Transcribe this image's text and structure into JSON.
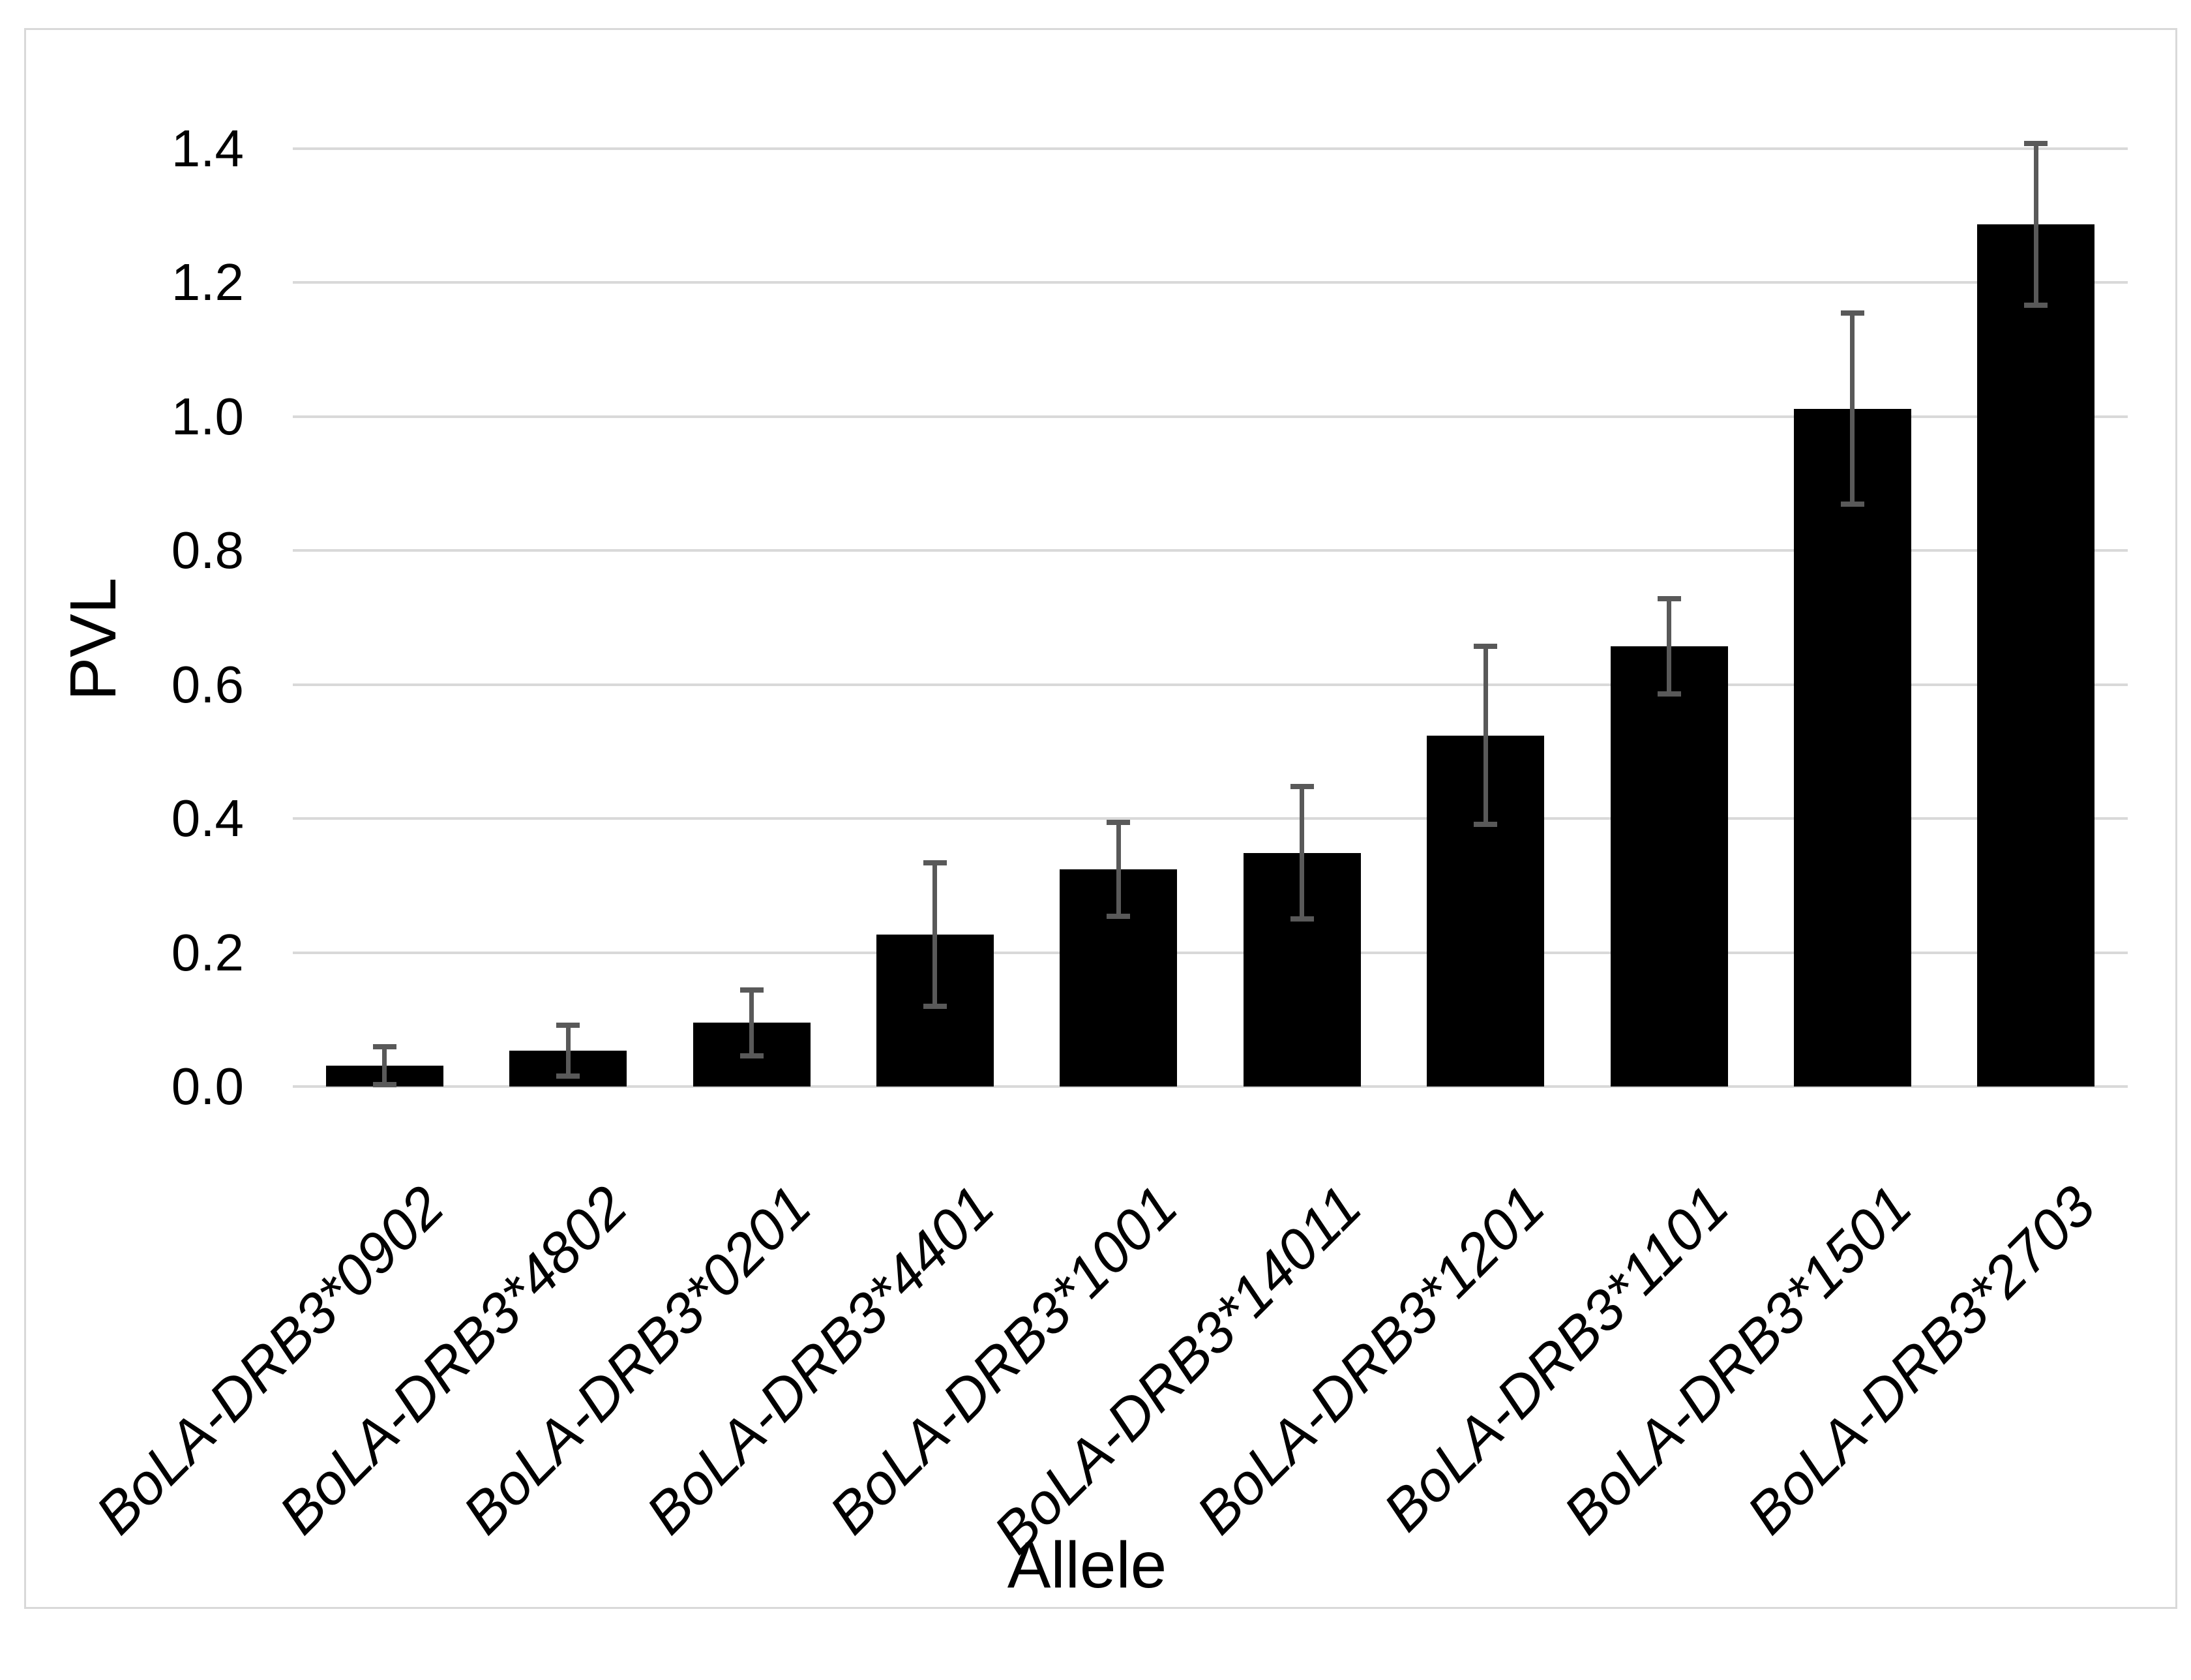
{
  "page": {
    "background": "#ffffff"
  },
  "chart_data": {
    "type": "bar",
    "title": "",
    "xlabel": "Allele",
    "ylabel": "PVL",
    "categories": [
      "BoLA-DRB3*0902",
      "BoLA-DRB3*4802",
      "BoLA-DRB3*0201",
      "BoLA-DRB3*4401",
      "BoLA-DRB3*1001",
      "BoLA-DRB3*14011",
      "BoLA-DRB3*1201",
      "BoLA-DRB3*1101",
      "BoLA-DRB3*1501",
      "BoLA-DRB3*2703"
    ],
    "values": [
      0.031,
      0.054,
      0.095,
      0.227,
      0.324,
      0.349,
      0.524,
      0.657,
      1.012,
      1.287
    ],
    "error_bars": [
      0.028,
      0.038,
      0.049,
      0.107,
      0.07,
      0.099,
      0.133,
      0.071,
      0.143,
      0.121
    ],
    "ylim": [
      0,
      1.4
    ],
    "ytick_step": 0.2,
    "ytick_labels": [
      "0.0",
      "0.2",
      "0.4",
      "0.6",
      "0.8",
      "1.0",
      "1.2",
      "1.4"
    ],
    "grid": true,
    "legend": "none",
    "x_labels_rotation_deg": 45,
    "x_labels_style": "italic",
    "bar_color": "#000000",
    "error_bar_color": "#595959",
    "gridline_color": "#d9d9d9",
    "border_color": "#d9d9d9",
    "text_color": "#000000"
  }
}
